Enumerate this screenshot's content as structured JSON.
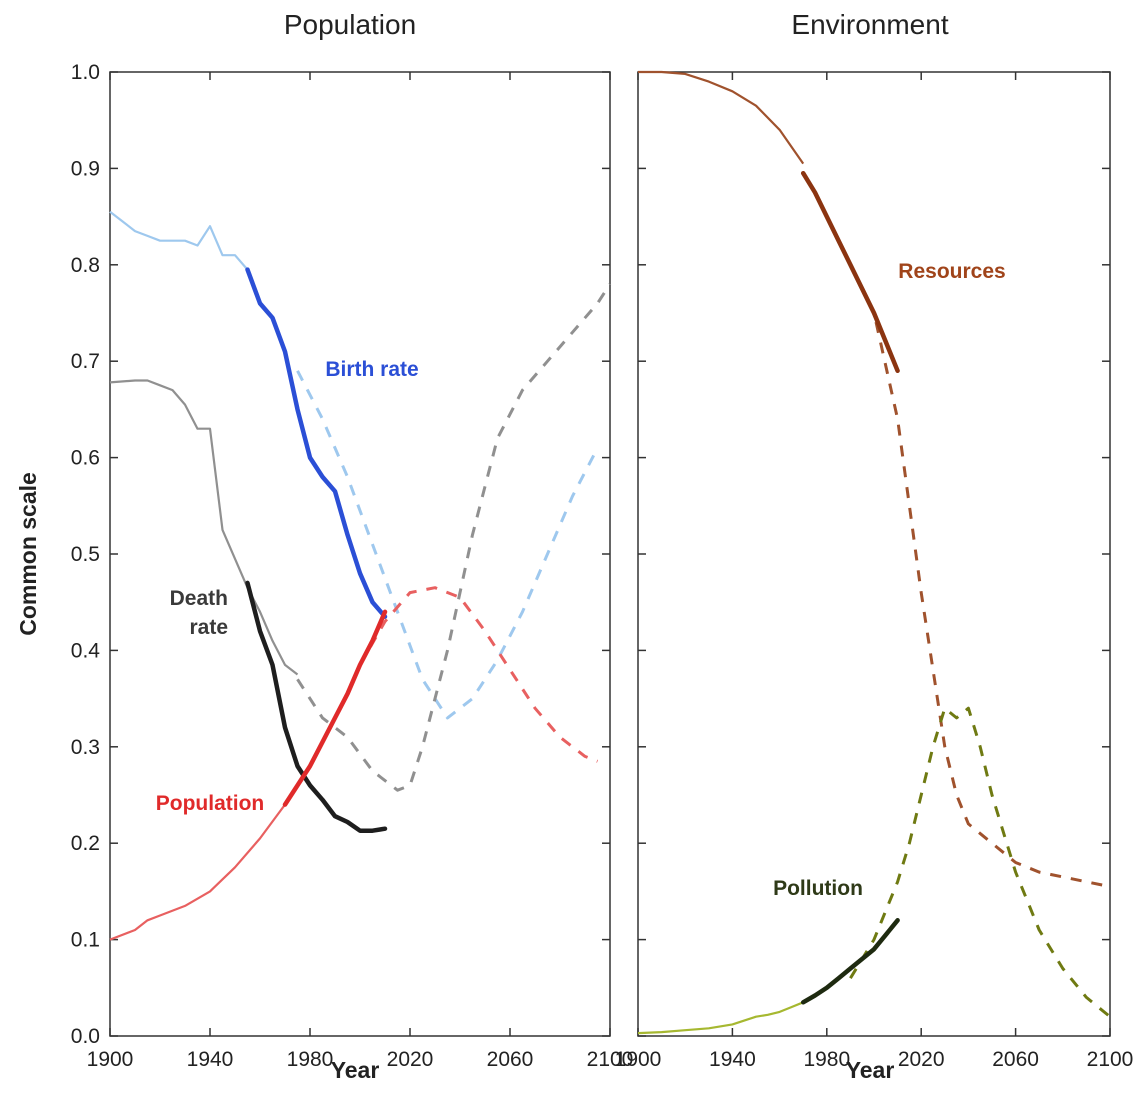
{
  "chart_data": [
    {
      "type": "line",
      "title": "Population",
      "xlabel": "Year",
      "ylabel": "Common scale",
      "xlim": [
        1900,
        2100
      ],
      "ylim": [
        0.0,
        1.0
      ],
      "x_ticks": [
        "1900",
        "1940",
        "1980",
        "2020",
        "2060",
        "2100"
      ],
      "y_ticks": [
        "0.0",
        "0.1",
        "0.2",
        "0.3",
        "0.4",
        "0.5",
        "0.6",
        "0.7",
        "0.8",
        "0.9",
        "1.0"
      ],
      "grid": false,
      "series": [
        {
          "name": "Birth rate",
          "label": "Birth rate",
          "color": "#2b4fd6",
          "light_color": "#9ec8ee",
          "historical_light": {
            "x": [
              1900,
              1905,
              1910,
              1915,
              1920,
              1925,
              1930,
              1935,
              1940,
              1945,
              1950,
              1955
            ],
            "y": [
              0.855,
              0.845,
              0.835,
              0.83,
              0.825,
              0.825,
              0.825,
              0.82,
              0.84,
              0.81,
              0.81,
              0.795
            ]
          },
          "observed": {
            "x": [
              1955,
              1960,
              1965,
              1970,
              1975,
              1980,
              1985,
              1990,
              1995,
              2000,
              2005,
              2010
            ],
            "y": [
              0.795,
              0.76,
              0.745,
              0.71,
              0.65,
              0.6,
              0.58,
              0.565,
              0.52,
              0.48,
              0.45,
              0.435
            ]
          },
          "model": {
            "x": [
              1975,
              1985,
              1995,
              2005,
              2015,
              2025,
              2035,
              2045,
              2055,
              2065,
              2075,
              2085,
              2095
            ],
            "y": [
              0.69,
              0.64,
              0.58,
              0.51,
              0.44,
              0.37,
              0.33,
              0.35,
              0.39,
              0.44,
              0.5,
              0.56,
              0.61
            ]
          }
        },
        {
          "name": "Death rate",
          "label": "Death rate",
          "color": "#1e1e1e",
          "light_color": "#909090",
          "historical_light": {
            "x": [
              1900,
              1910,
              1915,
              1920,
              1925,
              1930,
              1935,
              1940,
              1945,
              1950,
              1955,
              1960,
              1965,
              1970,
              1975
            ],
            "y": [
              0.678,
              0.68,
              0.68,
              0.675,
              0.67,
              0.655,
              0.63,
              0.63,
              0.525,
              0.495,
              0.465,
              0.44,
              0.41,
              0.385,
              0.375
            ]
          },
          "observed": {
            "x": [
              1955,
              1960,
              1965,
              1970,
              1975,
              1980,
              1985,
              1990,
              1995,
              2000,
              2005,
              2010
            ],
            "y": [
              0.47,
              0.42,
              0.385,
              0.32,
              0.28,
              0.26,
              0.245,
              0.228,
              0.222,
              0.213,
              0.213,
              0.215
            ]
          },
          "model": {
            "x": [
              1975,
              1985,
              1995,
              2005,
              2015,
              2020,
              2025,
              2035,
              2045,
              2055,
              2065,
              2075,
              2085,
              2095,
              2100
            ],
            "y": [
              0.37,
              0.33,
              0.31,
              0.275,
              0.255,
              0.26,
              0.3,
              0.4,
              0.52,
              0.62,
              0.67,
              0.7,
              0.73,
              0.76,
              0.78
            ]
          }
        },
        {
          "name": "Population",
          "label": "Population",
          "color": "#e02a2a",
          "light_color": "#e86060",
          "historical_light": {
            "x": [
              1900,
              1910,
              1915,
              1920,
              1930,
              1940,
              1950,
              1960,
              1970
            ],
            "y": [
              0.1,
              0.11,
              0.12,
              0.125,
              0.135,
              0.15,
              0.175,
              0.205,
              0.24
            ]
          },
          "observed": {
            "x": [
              1970,
              1975,
              1980,
              1985,
              1990,
              1995,
              2000,
              2005,
              2010
            ],
            "y": [
              0.24,
              0.26,
              0.28,
              0.305,
              0.33,
              0.355,
              0.385,
              0.41,
              0.44
            ]
          },
          "model": {
            "x": [
              2000,
              2010,
              2020,
              2030,
              2040,
              2050,
              2060,
              2070,
              2080,
              2090,
              2095
            ],
            "y": [
              0.385,
              0.43,
              0.46,
              0.465,
              0.455,
              0.42,
              0.38,
              0.34,
              0.31,
              0.29,
              0.285
            ]
          }
        }
      ]
    },
    {
      "type": "line",
      "title": "Environment",
      "xlabel": "Year",
      "ylabel": "",
      "xlim": [
        1900,
        2100
      ],
      "ylim": [
        0.0,
        1.0
      ],
      "x_ticks": [
        "1900",
        "1940",
        "1980",
        "2020",
        "2060",
        "2100"
      ],
      "y_ticks": [],
      "grid": false,
      "series": [
        {
          "name": "Resources",
          "label": "Resources",
          "color": "#8b3410",
          "light_color": "#a0522d",
          "historical_light": {
            "x": [
              1900,
              1910,
              1920,
              1930,
              1940,
              1950,
              1960,
              1970
            ],
            "y": [
              1.0,
              1.0,
              0.998,
              0.99,
              0.98,
              0.965,
              0.94,
              0.905
            ]
          },
          "observed": {
            "x": [
              1970,
              1975,
              1980,
              1985,
              1990,
              1995,
              2000,
              2005,
              2010
            ],
            "y": [
              0.895,
              0.875,
              0.85,
              0.825,
              0.8,
              0.775,
              0.75,
              0.72,
              0.69
            ]
          },
          "model": {
            "x": [
              1990,
              2000,
              2010,
              2015,
              2020,
              2025,
              2030,
              2035,
              2040,
              2050,
              2060,
              2070,
              2080,
              2090,
              2100
            ],
            "y": [
              0.8,
              0.75,
              0.64,
              0.55,
              0.46,
              0.38,
              0.3,
              0.25,
              0.22,
              0.2,
              0.18,
              0.17,
              0.165,
              0.16,
              0.155
            ]
          }
        },
        {
          "name": "Pollution",
          "label": "Pollution",
          "color": "#1e2a10",
          "light_color": "#a6b830",
          "model_color": "#6f7a12",
          "historical_light": {
            "x": [
              1900,
              1910,
              1920,
              1930,
              1940,
              1945,
              1950,
              1955,
              1960,
              1965,
              1970
            ],
            "y": [
              0.003,
              0.004,
              0.006,
              0.008,
              0.012,
              0.016,
              0.02,
              0.022,
              0.025,
              0.03,
              0.035
            ]
          },
          "observed": {
            "x": [
              1970,
              1975,
              1980,
              1985,
              1990,
              1995,
              2000,
              2005,
              2010
            ],
            "y": [
              0.035,
              0.042,
              0.05,
              0.06,
              0.07,
              0.08,
              0.09,
              0.105,
              0.12
            ]
          },
          "model": {
            "x": [
              1990,
              2000,
              2010,
              2015,
              2020,
              2025,
              2030,
              2035,
              2040,
              2045,
              2050,
              2060,
              2070,
              2080,
              2090,
              2100
            ],
            "y": [
              0.06,
              0.1,
              0.16,
              0.2,
              0.25,
              0.3,
              0.34,
              0.33,
              0.34,
              0.3,
              0.25,
              0.17,
              0.11,
              0.07,
              0.04,
              0.02
            ]
          }
        }
      ]
    }
  ]
}
